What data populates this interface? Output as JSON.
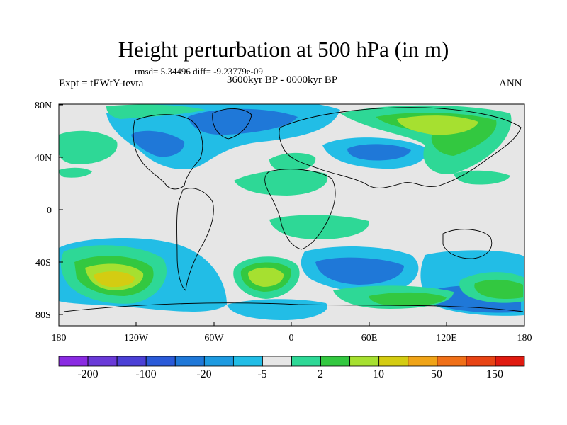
{
  "title": "Height perturbation at 500 hPa (in m)",
  "stats": "rmsd= 5.34496 diff= -9.23779e-09",
  "experiment": "Expt = tEWtY-tevta",
  "period": "3600kyr BP - 0000kyr BP",
  "season": "ANN",
  "lat_labels": [
    "80N",
    "40N",
    "0",
    "40S",
    "80S"
  ],
  "lon_labels": [
    "180",
    "120W",
    "60W",
    "0",
    "60E",
    "120E",
    "180"
  ],
  "colorbar": {
    "labels": [
      "-200",
      "-100",
      "-20",
      "-5",
      "2",
      "10",
      "50",
      "150"
    ],
    "colors": [
      "#8a2be2",
      "#6a3ad8",
      "#4b40d6",
      "#2a5ad8",
      "#1f78d8",
      "#1d9ae0",
      "#22bde6",
      "#e6e6e6",
      "#2ed896",
      "#33c840",
      "#a6e030",
      "#d4cc12",
      "#f0a418",
      "#f07018",
      "#e84414",
      "#e01a10"
    ]
  },
  "palette": {
    "neutral": "#e6e6e6",
    "cyan": "#22bde6",
    "blue": "#1f78d8",
    "teal": "#2ed896",
    "green": "#33c840",
    "yellowgreen": "#a6e030",
    "yellow": "#d4cc12",
    "orange": "#f0a418"
  }
}
